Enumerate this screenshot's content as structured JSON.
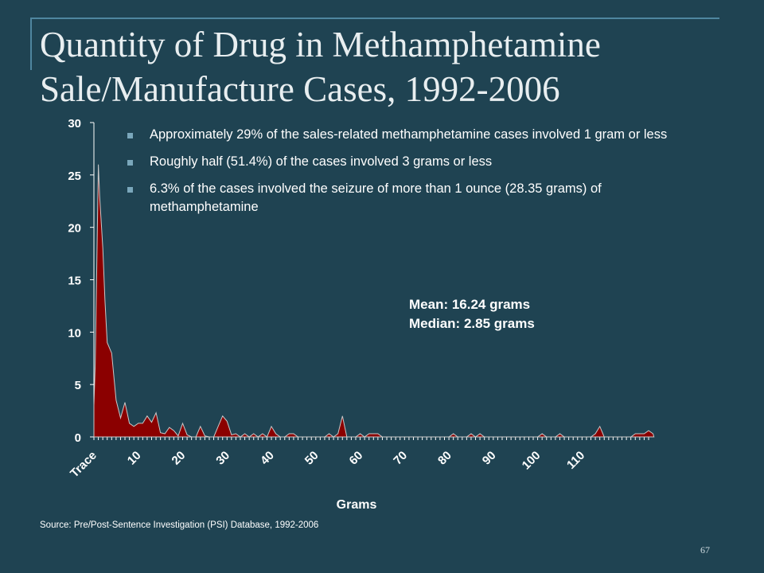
{
  "slide": {
    "title_line1": "Quantity of Drug in Methamphetamine",
    "title_line2": "Sale/Manufacture Cases, 1992-2006",
    "bullets": [
      "Approximately 29% of the sales-related methamphetamine cases involved 1 gram or less",
      "Roughly half (51.4%) of the cases involved 3 grams or less",
      "6.3% of the cases involved the seizure of more than 1 ounce (28.35 grams) of methamphetamine"
    ],
    "stats": {
      "mean": "Mean:  16.24 grams",
      "median": "Median:  2.85 grams"
    },
    "source": "Source:  Pre/Post-Sentence Investigation (PSI) Database, 1992-2006",
    "slide_number": "67"
  },
  "chart_data": {
    "type": "area",
    "title": "",
    "xlabel": "Grams",
    "ylabel": "",
    "ylim": [
      0,
      30
    ],
    "yticks": [
      0,
      5,
      10,
      15,
      20,
      25,
      30
    ],
    "xlim": [
      0,
      125
    ],
    "x_tick_labels": [
      {
        "x": 0,
        "label": "Trace"
      },
      {
        "x": 10,
        "label": "10"
      },
      {
        "x": 20,
        "label": "20"
      },
      {
        "x": 30,
        "label": "30"
      },
      {
        "x": 40,
        "label": "40"
      },
      {
        "x": 50,
        "label": "50"
      },
      {
        "x": 60,
        "label": "60"
      },
      {
        "x": 70,
        "label": "70"
      },
      {
        "x": 80,
        "label": "80"
      },
      {
        "x": 90,
        "label": "90"
      },
      {
        "x": 100,
        "label": "100"
      },
      {
        "x": 110,
        "label": "110"
      }
    ],
    "grid": false,
    "fill_color": "#8b0000",
    "series": [
      {
        "points": [
          [
            0,
            3.0
          ],
          [
            0.3,
            7.0
          ],
          [
            1,
            26.0
          ],
          [
            1.3,
            23.0
          ],
          [
            2,
            18.0
          ],
          [
            2.5,
            13.0
          ],
          [
            3,
            9.0
          ],
          [
            3.5,
            8.5
          ],
          [
            4,
            8.0
          ],
          [
            5,
            3.5
          ],
          [
            6,
            1.8
          ],
          [
            7,
            3.3
          ],
          [
            8,
            1.3
          ],
          [
            9,
            1.0
          ],
          [
            10,
            1.3
          ],
          [
            11,
            1.3
          ],
          [
            12,
            2.0
          ],
          [
            13,
            1.4
          ],
          [
            14,
            2.3
          ],
          [
            15,
            0.4
          ],
          [
            16,
            0.3
          ],
          [
            17,
            0.9
          ],
          [
            18,
            0.6
          ],
          [
            19,
            0.1
          ],
          [
            20,
            1.3
          ],
          [
            21,
            0.2
          ],
          [
            22,
            0.0
          ],
          [
            23,
            0.0
          ],
          [
            24,
            1.0
          ],
          [
            25,
            0.1
          ],
          [
            26,
            0.0
          ],
          [
            27,
            0.0
          ],
          [
            28,
            1.0
          ],
          [
            29,
            2.0
          ],
          [
            30,
            1.5
          ],
          [
            31,
            0.2
          ],
          [
            32,
            0.3
          ],
          [
            33,
            0.0
          ],
          [
            34,
            0.3
          ],
          [
            35,
            0.0
          ],
          [
            36,
            0.3
          ],
          [
            37,
            0.0
          ],
          [
            38,
            0.3
          ],
          [
            39,
            0.0
          ],
          [
            40,
            1.0
          ],
          [
            41,
            0.3
          ],
          [
            42,
            0.0
          ],
          [
            43,
            0.0
          ],
          [
            44,
            0.3
          ],
          [
            45,
            0.3
          ],
          [
            46,
            0.0
          ],
          [
            52,
            0.0
          ],
          [
            53,
            0.3
          ],
          [
            54,
            0.0
          ],
          [
            55,
            0.3
          ],
          [
            56,
            2.0
          ],
          [
            57,
            0.0
          ],
          [
            59,
            0.0
          ],
          [
            60,
            0.3
          ],
          [
            61,
            0.0
          ],
          [
            62,
            0.3
          ],
          [
            63,
            0.3
          ],
          [
            64,
            0.3
          ],
          [
            65,
            0.0
          ],
          [
            80,
            0.0
          ],
          [
            81,
            0.3
          ],
          [
            82,
            0.0
          ],
          [
            84,
            0.0
          ],
          [
            85,
            0.3
          ],
          [
            86,
            0.0
          ],
          [
            87,
            0.3
          ],
          [
            88,
            0.0
          ],
          [
            100,
            0.0
          ],
          [
            101,
            0.3
          ],
          [
            102,
            0.0
          ],
          [
            104,
            0.0
          ],
          [
            105,
            0.3
          ],
          [
            106,
            0.0
          ],
          [
            112,
            0.0
          ],
          [
            113,
            0.3
          ],
          [
            114,
            1.0
          ],
          [
            115,
            0.0
          ],
          [
            121,
            0.0
          ],
          [
            122,
            0.3
          ],
          [
            123,
            0.3
          ],
          [
            124,
            0.3
          ],
          [
            125,
            0.6
          ],
          [
            126,
            0.3
          ],
          [
            126.2,
            0.0
          ]
        ]
      }
    ]
  }
}
